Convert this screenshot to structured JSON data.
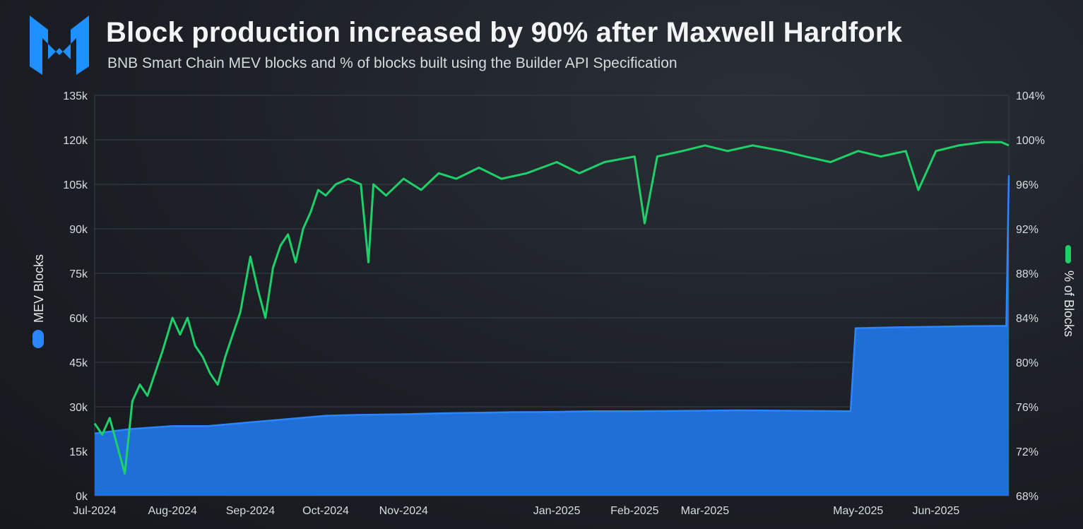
{
  "header": {
    "title": "Block production increased by 90% after Maxwell Hardfork",
    "subtitle": "BNB Smart Chain MEV blocks and % of blocks built using the Builder API Specification"
  },
  "colors": {
    "bar_fill": "#1f6fd6",
    "bar_edge": "#2b86ff",
    "line": "#1ed06a",
    "grid": "#3a3f46",
    "logo": "#1e90ff"
  },
  "logo": {
    "icon": "brand-logo-icon"
  },
  "chart_data": {
    "type": "area",
    "title": "Block production increased by 90% after Maxwell Hardfork",
    "subtitle": "BNB Smart Chain MEV blocks and % of blocks built using the Builder API Specification",
    "x_tick_labels": [
      "Jul-2024",
      "Aug-2024",
      "Sep-2024",
      "Oct-2024",
      "Nov-2024",
      "Jan-2025",
      "Feb-2025",
      "Mar-2025",
      "May-2025",
      "Jun-2025"
    ],
    "x_tick_dates": [
      "2024-07-01",
      "2024-08-01",
      "2024-09-01",
      "2024-10-01",
      "2024-11-01",
      "2025-01-01",
      "2025-02-01",
      "2025-03-01",
      "2025-05-01",
      "2025-06-01"
    ],
    "y_left": {
      "label": "MEV Blocks",
      "ylim": [
        0,
        135000
      ],
      "ticks": [
        "0k",
        "15k",
        "30k",
        "45k",
        "60k",
        "75k",
        "90k",
        "105k",
        "120k",
        "135k"
      ]
    },
    "y_right": {
      "label": "% of Blocks",
      "ylim": [
        68,
        104
      ],
      "ticks": [
        "68%",
        "72%",
        "76%",
        "80%",
        "84%",
        "88%",
        "92%",
        "96%",
        "100%",
        "104%"
      ]
    },
    "grid": true,
    "legend": "axis-labels",
    "series": [
      {
        "name": "MEV Blocks",
        "axis": "left",
        "style": "area",
        "x": [
          "2024-07-01",
          "2024-07-15",
          "2024-08-01",
          "2024-08-15",
          "2024-09-01",
          "2024-09-15",
          "2024-10-01",
          "2024-10-15",
          "2024-11-01",
          "2024-11-15",
          "2024-12-01",
          "2024-12-15",
          "2025-01-01",
          "2025-01-15",
          "2025-02-01",
          "2025-02-15",
          "2025-03-01",
          "2025-03-15",
          "2025-04-01",
          "2025-04-28",
          "2025-04-30",
          "2025-05-15",
          "2025-06-01",
          "2025-06-15",
          "2025-06-29",
          "2025-06-30"
        ],
        "values": [
          21000,
          22500,
          23500,
          23500,
          24800,
          25800,
          27000,
          27300,
          27500,
          27800,
          28000,
          28200,
          28300,
          28500,
          28500,
          28600,
          28700,
          28800,
          28700,
          28500,
          56500,
          56800,
          57000,
          57200,
          57300,
          108000
        ]
      },
      {
        "name": "% of Blocks",
        "axis": "right",
        "style": "line",
        "x": [
          "2024-07-01",
          "2024-07-04",
          "2024-07-07",
          "2024-07-10",
          "2024-07-13",
          "2024-07-16",
          "2024-07-19",
          "2024-07-22",
          "2024-07-25",
          "2024-07-28",
          "2024-08-01",
          "2024-08-04",
          "2024-08-07",
          "2024-08-10",
          "2024-08-13",
          "2024-08-16",
          "2024-08-19",
          "2024-08-22",
          "2024-08-25",
          "2024-08-28",
          "2024-09-01",
          "2024-09-04",
          "2024-09-07",
          "2024-09-10",
          "2024-09-13",
          "2024-09-16",
          "2024-09-19",
          "2024-09-22",
          "2024-09-25",
          "2024-09-28",
          "2024-10-01",
          "2024-10-05",
          "2024-10-10",
          "2024-10-15",
          "2024-10-18",
          "2024-10-20",
          "2024-10-25",
          "2024-11-01",
          "2024-11-08",
          "2024-11-15",
          "2024-11-22",
          "2024-12-01",
          "2024-12-10",
          "2024-12-20",
          "2025-01-01",
          "2025-01-10",
          "2025-01-20",
          "2025-02-01",
          "2025-02-05",
          "2025-02-10",
          "2025-02-20",
          "2025-03-01",
          "2025-03-10",
          "2025-03-20",
          "2025-04-01",
          "2025-04-10",
          "2025-04-20",
          "2025-05-01",
          "2025-05-10",
          "2025-05-20",
          "2025-05-25",
          "2025-06-01",
          "2025-06-10",
          "2025-06-20",
          "2025-06-27",
          "2025-06-30"
        ],
        "values": [
          74.5,
          73.5,
          75.0,
          72.5,
          70.0,
          76.5,
          78.0,
          77.0,
          79.0,
          81.0,
          84.0,
          82.5,
          84.0,
          81.5,
          80.5,
          79.0,
          78.0,
          80.5,
          82.5,
          84.5,
          89.5,
          86.5,
          84.0,
          88.5,
          90.5,
          91.5,
          89.0,
          92.0,
          93.5,
          95.5,
          95.0,
          96.0,
          96.5,
          96.0,
          89.0,
          96.0,
          95.0,
          96.5,
          95.5,
          97.0,
          96.5,
          97.5,
          96.5,
          97.0,
          98.0,
          97.0,
          98.0,
          98.5,
          92.5,
          98.5,
          99.0,
          99.5,
          99.0,
          99.5,
          99.0,
          98.5,
          98.0,
          99.0,
          98.5,
          99.0,
          95.5,
          99.0,
          99.5,
          99.8,
          99.8,
          99.5
        ]
      }
    ]
  }
}
